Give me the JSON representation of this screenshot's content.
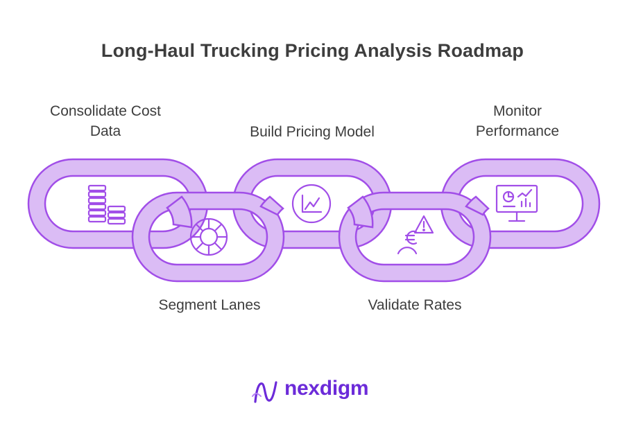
{
  "title": "Long-Haul Trucking Pricing Analysis Roadmap",
  "steps": [
    {
      "label_line1": "Consolidate Cost",
      "label_line2": "Data",
      "icon": "coin-stack-icon"
    },
    {
      "label_line1": "Segment Lanes",
      "label_line2": "",
      "icon": "pie-chart-icon"
    },
    {
      "label_line1": "Build Pricing Model",
      "label_line2": "",
      "icon": "line-chart-icon"
    },
    {
      "label_line1": "Validate Rates",
      "label_line2": "",
      "icon": "euro-warning-icon"
    },
    {
      "label_line1": "Monitor",
      "label_line2": "Performance",
      "icon": "monitor-dashboard-icon"
    }
  ],
  "brand": {
    "name": "nexdigm",
    "icon": "nexdigm-logo-icon"
  },
  "colors": {
    "link_fill": "#dbbcf5",
    "link_stroke": "#a14ee8",
    "icon_stroke": "#a14ee8",
    "title_text": "#3d3d3d",
    "label_text": "#3d3d3d",
    "brand_text": "#6c2bd9"
  }
}
